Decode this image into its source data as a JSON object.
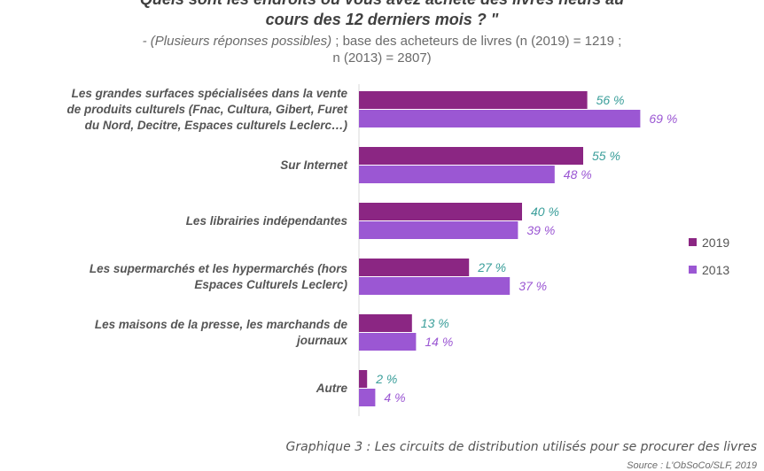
{
  "title_line1": "Quels sont les endroits où vous avez acheté des livres neufs au",
  "title_line2": "cours des 12 derniers mois ? \"",
  "subtitle_line1_italic": "- (Plusieurs réponses possibles)",
  "subtitle_line1_rest": " ; base des acheteurs de livres (n (2019) = 1219 ;",
  "subtitle_line2": "n (2013) = 2807)",
  "caption": "Graphique 3 : Les circuits de distribution utilisés pour se procurer des livres",
  "source": "Source : L'ObSoCo/SLF, 2019",
  "colors": {
    "series2019": "#8b2683",
    "series2013": "#9b57d3",
    "label2019": "#3a9e9a",
    "label2013": "#9b57d3"
  },
  "chart_data": {
    "type": "bar",
    "orientation": "horizontal",
    "categories": [
      "Les grandes surfaces spécialisées dans la vente de produits culturels (Fnac, Cultura, Gibert, Furet du Nord, Decitre, Espaces culturels Leclerc…)",
      "Sur Internet",
      "Les librairies indépendantes",
      "Les supermarchés et les hypermarchés (hors Espaces Culturels Leclerc)",
      "Les maisons de la presse, les marchands de journaux",
      "Autre"
    ],
    "category_lines": [
      [
        "Les grandes surfaces spécialisées dans la vente",
        "de produits culturels (Fnac, Cultura, Gibert, Furet",
        "du Nord, Decitre, Espaces culturels Leclerc…)"
      ],
      [
        "Sur Internet"
      ],
      [
        "Les librairies indépendantes"
      ],
      [
        "Les supermarchés et les hypermarchés (hors",
        "Espaces Culturels Leclerc)"
      ],
      [
        "Les maisons de la presse, les marchands de",
        "journaux"
      ],
      [
        "Autre"
      ]
    ],
    "series": [
      {
        "name": "2019",
        "values": [
          56,
          55,
          40,
          27,
          13,
          2
        ],
        "labels": [
          "56 %",
          "55 %",
          "40 %",
          "27 %",
          "13 %",
          "2 %"
        ]
      },
      {
        "name": "2013",
        "values": [
          69,
          48,
          39,
          37,
          14,
          4
        ],
        "labels": [
          "69 %",
          "48 %",
          "39 %",
          "37 %",
          "14 %",
          "4 %"
        ]
      }
    ],
    "xlim": [
      0,
      100
    ],
    "legend_position": "right",
    "grid": false
  }
}
